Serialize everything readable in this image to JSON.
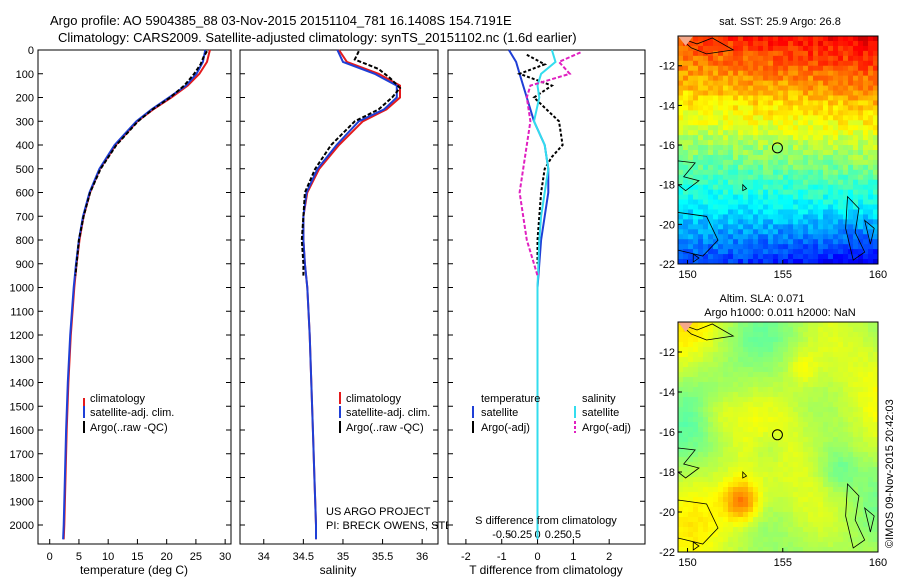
{
  "header": {
    "title_line1": "Argo profile: AO 5904385_88 03-Nov-2015 20151104_781 16.1408S 154.7191E",
    "title_line2": "Climatology: CARS2009. Satellite-adjusted climatology: synTS_20151102.nc (1.6d earlier)"
  },
  "colors": {
    "climatology": "#e41a1c",
    "satellite": "#1f3fd6",
    "argo": "#000000",
    "salinity_sat": "#33ddee",
    "salinity_argo": "#e020c0"
  },
  "chart_data": [
    {
      "type": "line",
      "id": "temperature",
      "xlabel": "temperature (deg C)",
      "ylabel": "depth",
      "xlim": [
        -2,
        31
      ],
      "ylim": [
        0,
        2080
      ],
      "xticks": [
        0,
        5,
        10,
        15,
        20,
        25,
        30
      ],
      "yticks": [
        0,
        100,
        200,
        300,
        400,
        500,
        600,
        700,
        800,
        900,
        1000,
        1100,
        1200,
        1300,
        1400,
        1500,
        1600,
        1700,
        1800,
        1900,
        2000
      ],
      "legend": [
        "climatology",
        "satellite-adj. clim.",
        "Argo(..raw -QC)"
      ],
      "legend_position": "bottom-center",
      "series": [
        {
          "name": "climatology",
          "depth": [
            0,
            50,
            100,
            150,
            200,
            250,
            300,
            400,
            500,
            600,
            700,
            800,
            900,
            1000,
            1200,
            1400,
            1600,
            1800,
            2000,
            2060
          ],
          "values": [
            27.4,
            26.9,
            25.6,
            23.6,
            20.8,
            17.7,
            15.0,
            11.3,
            8.6,
            6.9,
            5.8,
            5.1,
            4.6,
            4.2,
            3.6,
            3.2,
            2.9,
            2.7,
            2.5,
            2.4
          ]
        },
        {
          "name": "satellite-adj. clim.",
          "depth": [
            0,
            50,
            100,
            150,
            200,
            250,
            300,
            400,
            500,
            600,
            700,
            800,
            900,
            1000,
            1200,
            1400,
            1600,
            1800,
            2000,
            2060
          ],
          "values": [
            26.6,
            26.2,
            25.1,
            23.3,
            20.4,
            17.4,
            14.8,
            11.1,
            8.5,
            6.8,
            5.7,
            5.0,
            4.5,
            4.1,
            3.5,
            3.1,
            2.8,
            2.6,
            2.4,
            2.3
          ]
        },
        {
          "name": "Argo(..raw -QC)",
          "depth": [
            5,
            30,
            60,
            100,
            150,
            200,
            250,
            300,
            400,
            500,
            600,
            700,
            800,
            900,
            950
          ],
          "values": [
            26.9,
            26.3,
            25.8,
            24.7,
            23.0,
            20.6,
            17.6,
            15.1,
            11.4,
            8.7,
            6.9,
            5.8,
            5.0,
            4.6,
            4.4
          ]
        }
      ]
    },
    {
      "type": "line",
      "id": "salinity",
      "xlabel": "salinity",
      "ylabel": "depth",
      "xlim": [
        33.7,
        36.2
      ],
      "ylim": [
        0,
        2080
      ],
      "xticks": [
        34,
        34.5,
        35,
        35.5,
        36
      ],
      "legend": [
        "climatology",
        "satellite-adj. clim.",
        "Argo(..raw -QC)"
      ],
      "legend_position": "bottom-center",
      "series": [
        {
          "name": "climatology",
          "depth": [
            0,
            50,
            100,
            150,
            200,
            250,
            300,
            400,
            500,
            600,
            700,
            800,
            900,
            1000,
            1200,
            1400,
            1600,
            1800,
            2000,
            2060
          ],
          "values": [
            34.95,
            35.05,
            35.45,
            35.72,
            35.72,
            35.55,
            35.25,
            34.95,
            34.7,
            34.55,
            34.5,
            34.5,
            34.52,
            34.55,
            34.58,
            34.6,
            34.62,
            34.64,
            34.66,
            34.66
          ]
        },
        {
          "name": "satellite-adj. clim.",
          "depth": [
            0,
            50,
            100,
            150,
            200,
            250,
            300,
            400,
            500,
            600,
            700,
            800,
            900,
            1000,
            1200,
            1400,
            1600,
            1800,
            2000,
            2060
          ],
          "values": [
            34.93,
            35.0,
            35.4,
            35.68,
            35.68,
            35.52,
            35.2,
            34.92,
            34.68,
            34.54,
            34.5,
            34.5,
            34.52,
            34.55,
            34.58,
            34.6,
            34.62,
            34.64,
            34.66,
            34.66
          ]
        },
        {
          "name": "Argo(..raw -QC)",
          "depth": [
            5,
            40,
            80,
            120,
            160,
            200,
            250,
            300,
            400,
            500,
            600,
            700,
            800,
            900,
            950
          ],
          "values": [
            35.2,
            35.15,
            35.45,
            35.6,
            35.72,
            35.62,
            35.45,
            35.15,
            34.85,
            34.65,
            34.52,
            34.5,
            34.48,
            34.5,
            34.5
          ]
        }
      ]
    },
    {
      "type": "line",
      "id": "difference",
      "xlabel": "T difference from climatology",
      "xlabel_top": "S difference from climatology",
      "xlim": [
        -2.5,
        3
      ],
      "ylim": [
        0,
        2080
      ],
      "xticks": [
        -2,
        -1,
        0,
        1,
        2
      ],
      "xticks_top": [
        -0.5,
        -0.25,
        0,
        0.25,
        0.5
      ],
      "legend_titles": [
        "temperature",
        "salinity"
      ],
      "legend": [
        "satellite",
        "Argo(-adj)",
        "satellite",
        "Argo(-adj)"
      ],
      "legend_position": "bottom-center",
      "series": [
        {
          "name": "temperature satellite",
          "depth": [
            0,
            50,
            100,
            200,
            300,
            400,
            500,
            600,
            700,
            800,
            900,
            1000,
            1200,
            1600,
            2060
          ],
          "values": [
            -0.8,
            -0.6,
            -0.5,
            -0.3,
            -0.1,
            0.2,
            0.3,
            0.3,
            0.2,
            0.1,
            0.05,
            0.0,
            0.0,
            0.0,
            0.0
          ]
        },
        {
          "name": "temperature Argo(-adj)",
          "depth": [
            20,
            60,
            100,
            150,
            200,
            300,
            400,
            450,
            500,
            600,
            700,
            800,
            900
          ],
          "values": [
            -0.3,
            0.2,
            -0.5,
            0.4,
            -0.1,
            0.6,
            0.7,
            0.4,
            0.2,
            0.1,
            0.05,
            0.0,
            0.0
          ]
        },
        {
          "name": "salinity satellite",
          "depth": [
            0,
            50,
            100,
            150,
            200,
            300,
            400,
            500,
            600,
            700,
            800,
            1000,
            2060
          ],
          "values": [
            0.4,
            0.5,
            0.1,
            0.0,
            0.05,
            -0.1,
            0.2,
            0.3,
            0.2,
            0.1,
            0.05,
            0.0,
            0.0
          ]
        },
        {
          "name": "salinity Argo(-adj)",
          "depth": [
            10,
            50,
            100,
            150,
            200,
            300,
            400,
            500,
            600,
            700,
            800,
            900,
            950
          ],
          "values": [
            1.2,
            0.6,
            0.9,
            -0.2,
            -0.3,
            -0.2,
            -0.3,
            -0.4,
            -0.5,
            -0.4,
            -0.3,
            -0.1,
            0.0
          ]
        }
      ]
    },
    {
      "type": "heatmap",
      "id": "sst_map",
      "title": "sat. SST: 25.9 Argo: 26.8",
      "xlim": [
        149.5,
        160
      ],
      "ylim": [
        -22,
        -10.5
      ],
      "xticks": [
        150,
        155,
        160
      ],
      "yticks": [
        -12,
        -14,
        -16,
        -18,
        -20,
        -22
      ],
      "marker": {
        "lon": 154.72,
        "lat": -16.14
      }
    },
    {
      "type": "heatmap",
      "id": "sla_map",
      "title": "Altim. SLA: 0.071",
      "subtitle": "Argo h1000: 0.011 h2000: NaN",
      "xlim": [
        149.5,
        160
      ],
      "ylim": [
        -22,
        -10.5
      ],
      "xticks": [
        150,
        155,
        160
      ],
      "yticks": [
        -12,
        -14,
        -16,
        -18,
        -20,
        -22
      ],
      "marker": {
        "lon": 154.72,
        "lat": -16.14
      }
    }
  ],
  "annotations": {
    "project": "US ARGO PROJECT",
    "pi": "PI: BRECK OWENS, STEVE JAYNE, P.E. ROBBINS",
    "credit": "©IMOS 09-Nov-2015 20:42:03"
  }
}
